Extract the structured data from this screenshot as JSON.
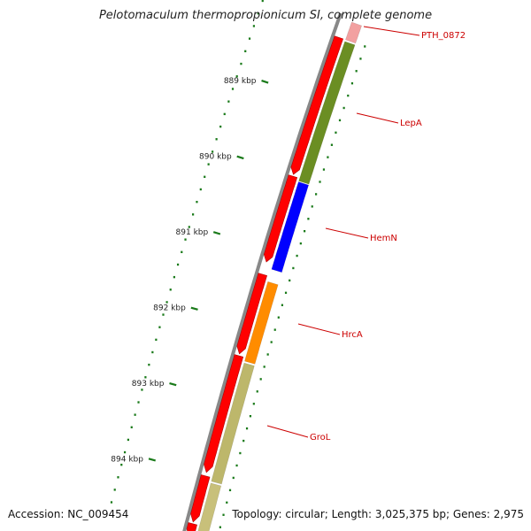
{
  "title": "Pelotomaculum thermopropionicum SI, complete genome",
  "accession": "Accession: NC_009454",
  "topology": "Topology: circular; Length: 3,025,375 bp; Genes: 2,975",
  "ticks": [
    {
      "label": "889 kbp",
      "kbp": 889
    },
    {
      "label": "890 kbp",
      "kbp": 890
    },
    {
      "label": "891 kbp",
      "kbp": 891
    },
    {
      "label": "892 kbp",
      "kbp": 892
    },
    {
      "label": "893 kbp",
      "kbp": 893
    },
    {
      "label": "894 kbp",
      "kbp": 894
    }
  ],
  "genes_labeled": [
    {
      "name": "PTH_0872",
      "color": "#f2a0a0"
    },
    {
      "name": "LepA",
      "color": "#6b8e23"
    },
    {
      "name": "HemN",
      "color": "#0000ff"
    },
    {
      "name": "HrcA",
      "color": "#ff8c00"
    },
    {
      "name": "GroL",
      "color": "#bdb76b"
    }
  ],
  "colors": {
    "backbone": "#888888",
    "cds": "#ff0000",
    "tick": "#1a7a1a",
    "label": "#cc0000",
    "gc_dots": "#1a7a1a"
  }
}
